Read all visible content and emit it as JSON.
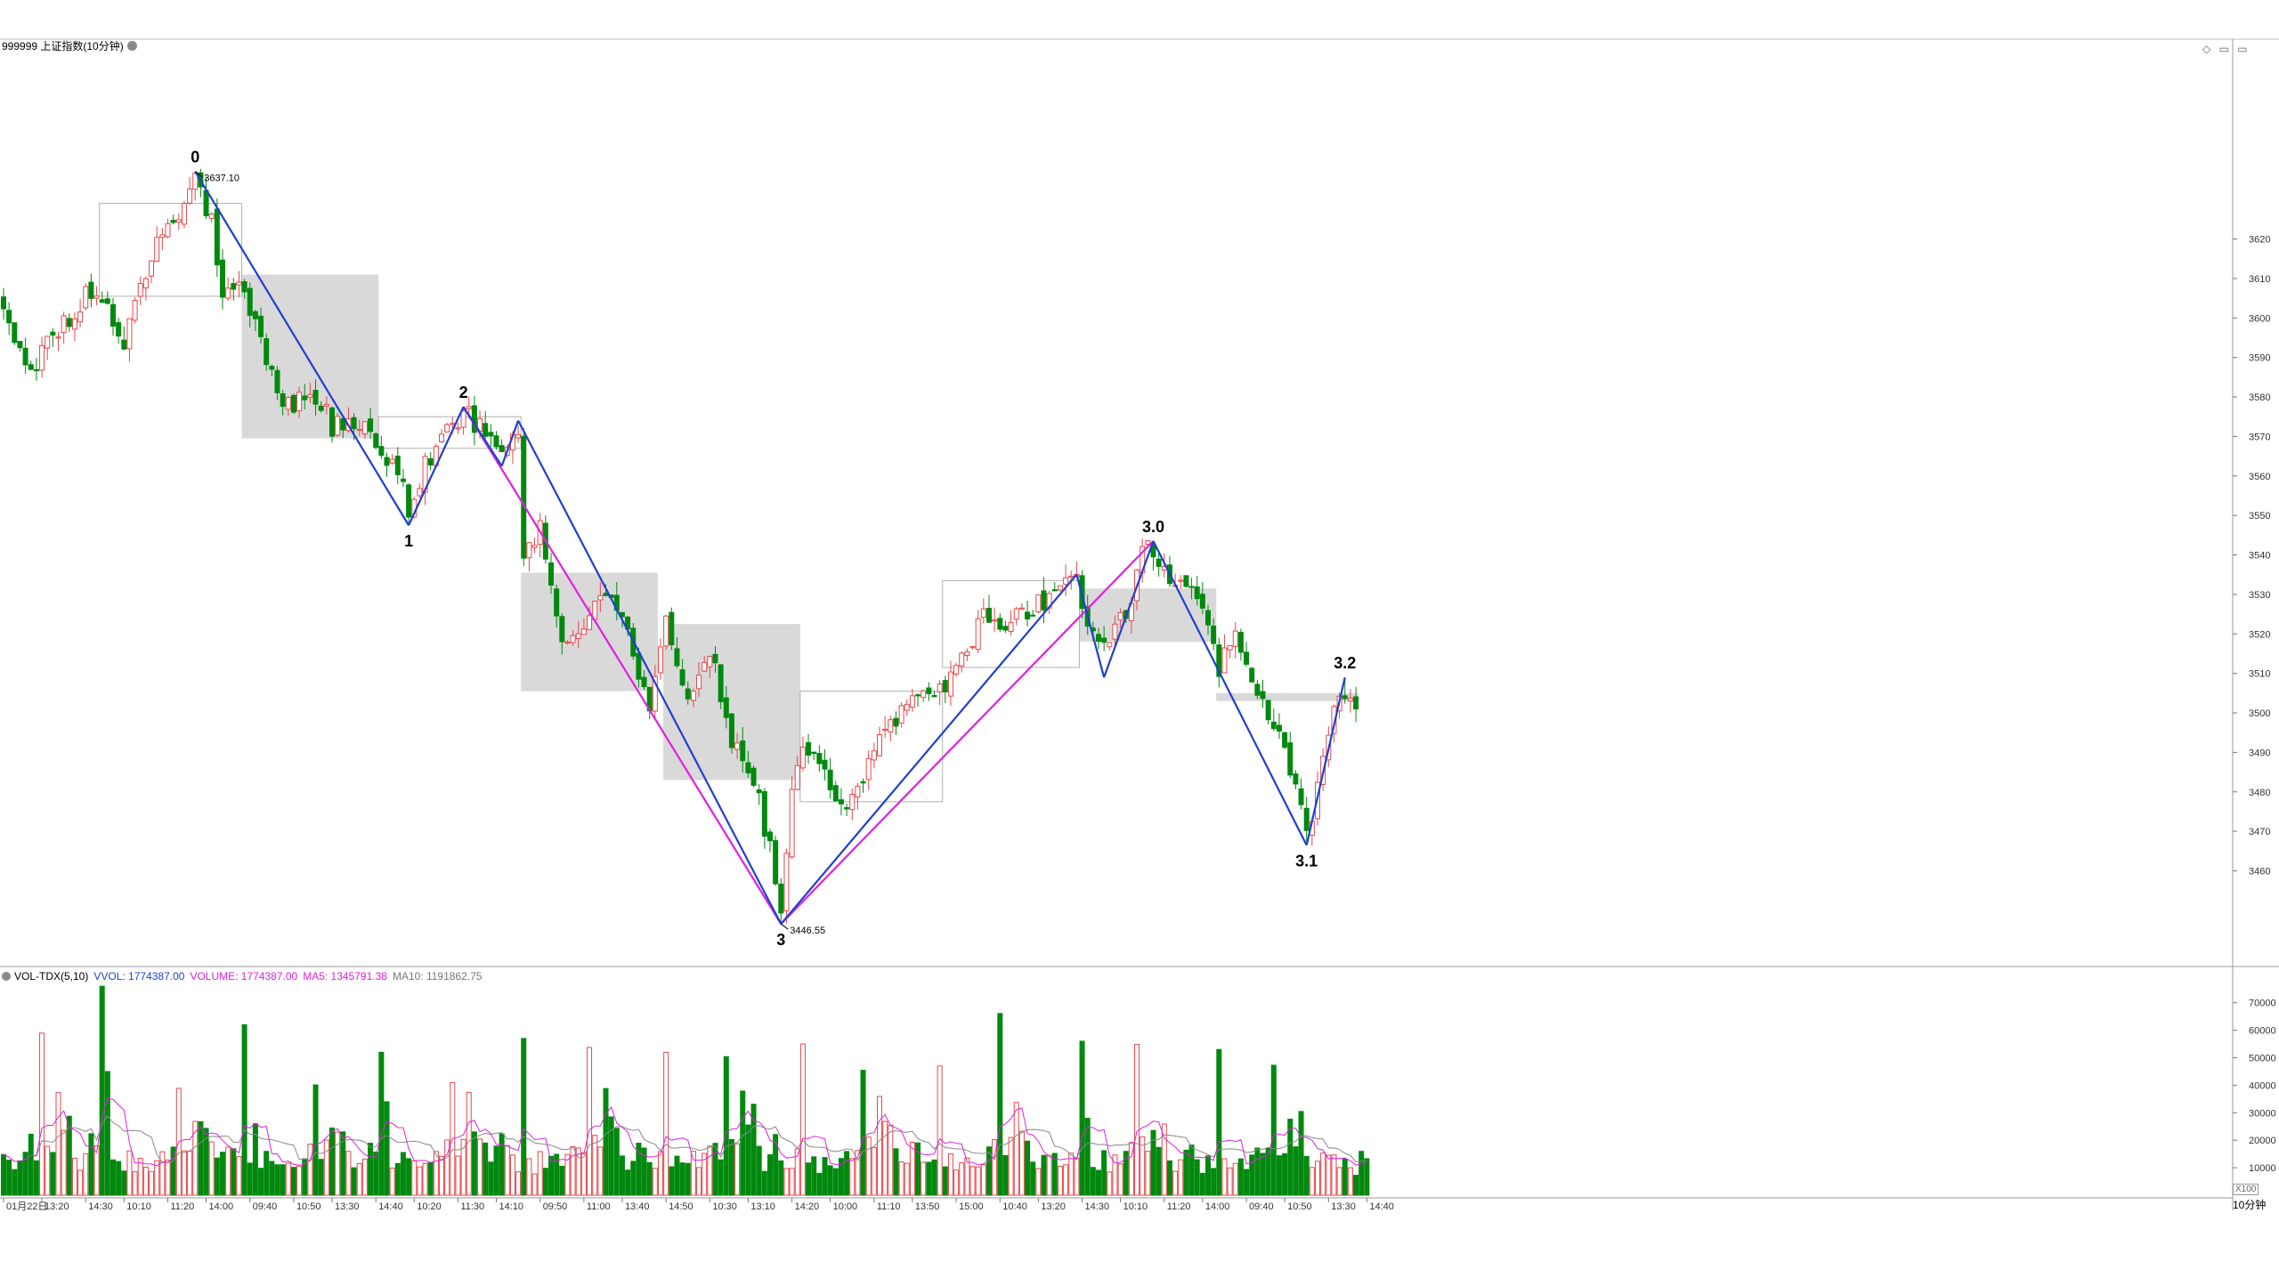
{
  "header": {
    "title": "999999 上证指数(10分钟)",
    "settings_icon": "gear-icon"
  },
  "window_controls": {
    "icons": [
      "diamond-icon",
      "restore-icon",
      "maximize-icon"
    ],
    "glyphs": "◇ ▭ ▭"
  },
  "volume_header": {
    "name": "VOL-TDX(5,10)",
    "vvol": "VVOL: 1774387.00",
    "volume": "VOLUME: 1774387.00",
    "ma5": "MA5: 1345791.38",
    "ma10": "MA10: 1191862.75"
  },
  "timeframe_label": "10分钟",
  "scale_badge": "X100",
  "colors": {
    "up": "#e8474b",
    "down": "#00890e",
    "wave_blue": "#1f3fd1",
    "wave_magenta": "#e020e0",
    "box_fill": "#d9d9d9",
    "ma5": "#e020e0",
    "ma10": "#888888"
  },
  "chart_data": [
    {
      "type": "candlestick",
      "title": "999999 上证指数(10分钟)",
      "y_ticks": [
        3460,
        3470,
        3480,
        3490,
        3500,
        3510,
        3520,
        3530,
        3540,
        3550,
        3560,
        3570,
        3580,
        3590,
        3600,
        3610,
        3620
      ],
      "ylim": [
        3436,
        3667
      ],
      "high_label": "3637.10",
      "low_label": "3446.55",
      "wave_points": [
        {
          "label": "0",
          "bar": 35,
          "value": 3637.1
        },
        {
          "label": "1",
          "bar": 74,
          "value": 3547.5
        },
        {
          "label": "2",
          "bar": 84,
          "value": 3577.5
        },
        {
          "label": "3",
          "bar": 142,
          "value": 3446.55
        },
        {
          "label": "3.0",
          "bar": 210,
          "value": 3543.5
        },
        {
          "label": "3.1",
          "bar": 238,
          "value": 3466.5
        },
        {
          "label": "3.2",
          "bar": 245,
          "value": 3509
        }
      ],
      "wave_segments_blue": [
        {
          "from_bar": 35,
          "from": 3637.1,
          "to_bar": 74,
          "to": 3547.5
        },
        {
          "from_bar": 74,
          "from": 3547.5,
          "to_bar": 84,
          "to": 3577.5
        },
        {
          "from_bar": 84,
          "from": 3577.5,
          "to_bar": 91,
          "to": 3562.5
        },
        {
          "from_bar": 91,
          "from": 3562.5,
          "to_bar": 94,
          "to": 3574
        },
        {
          "from_bar": 94,
          "from": 3574,
          "to_bar": 142,
          "to": 3446.55
        },
        {
          "from_bar": 142,
          "from": 3446.55,
          "to_bar": 196,
          "to": 3535
        },
        {
          "from_bar": 196,
          "from": 3535,
          "to_bar": 201,
          "to": 3509
        },
        {
          "from_bar": 201,
          "from": 3509,
          "to_bar": 210,
          "to": 3543.5
        },
        {
          "from_bar": 210,
          "from": 3543.5,
          "to_bar": 238,
          "to": 3466.5
        },
        {
          "from_bar": 238,
          "from": 3466.5,
          "to_bar": 245,
          "to": 3509
        }
      ],
      "wave_segments_magenta": [
        {
          "from_bar": 84,
          "from": 3577.5,
          "to_bar": 142,
          "to": 3446.55
        },
        {
          "from_bar": 142,
          "from": 3446.55,
          "to_bar": 210,
          "to": 3543.5
        }
      ],
      "boxes_filled": [
        {
          "from_bar": 44,
          "to_bar": 68,
          "top": 3611,
          "bottom": 3569.5
        },
        {
          "from_bar": 95,
          "to_bar": 119,
          "top": 3535.5,
          "bottom": 3505.5
        },
        {
          "from_bar": 121,
          "to_bar": 145,
          "top": 3522.5,
          "bottom": 3483
        },
        {
          "from_bar": 197,
          "to_bar": 221,
          "top": 3531.5,
          "bottom": 3518
        },
        {
          "from_bar": 222,
          "to_bar": 247,
          "top": 3505,
          "bottom": 3503
        }
      ],
      "boxes_outline": [
        {
          "from_bar": 18,
          "to_bar": 43,
          "top": 3629,
          "bottom": 3605.5
        },
        {
          "from_bar": 69,
          "to_bar": 94,
          "top": 3575,
          "bottom": 3567
        },
        {
          "from_bar": 146,
          "to_bar": 171,
          "top": 3505.5,
          "bottom": 3477.5
        },
        {
          "from_bar": 172,
          "to_bar": 196,
          "top": 3533.5,
          "bottom": 3511.5
        }
      ],
      "anchors": [
        [
          0,
          3601
        ],
        [
          5,
          3585
        ],
        [
          10,
          3598
        ],
        [
          15,
          3605
        ],
        [
          20,
          3600
        ],
        [
          22,
          3592
        ],
        [
          25,
          3608
        ],
        [
          28,
          3618
        ],
        [
          31,
          3625
        ],
        [
          35,
          3634
        ],
        [
          38,
          3624
        ],
        [
          40,
          3605
        ],
        [
          44,
          3608
        ],
        [
          48,
          3590
        ],
        [
          52,
          3577
        ],
        [
          56,
          3582
        ],
        [
          60,
          3573
        ],
        [
          64,
          3574
        ],
        [
          68,
          3570
        ],
        [
          72,
          3560
        ],
        [
          74,
          3552
        ],
        [
          77,
          3563
        ],
        [
          80,
          3568
        ],
        [
          84,
          3576
        ],
        [
          87,
          3573
        ],
        [
          91,
          3566
        ],
        [
          94,
          3572
        ],
        [
          95,
          3540
        ],
        [
          98,
          3547
        ],
        [
          102,
          3520
        ],
        [
          106,
          3522
        ],
        [
          110,
          3530
        ],
        [
          114,
          3520
        ],
        [
          118,
          3502
        ],
        [
          121,
          3522
        ],
        [
          125,
          3506
        ],
        [
          129,
          3516
        ],
        [
          133,
          3494
        ],
        [
          137,
          3484
        ],
        [
          140,
          3465
        ],
        [
          142,
          3452
        ],
        [
          144,
          3478
        ],
        [
          146,
          3493
        ],
        [
          150,
          3485
        ],
        [
          154,
          3476
        ],
        [
          158,
          3487
        ],
        [
          162,
          3498
        ],
        [
          166,
          3502
        ],
        [
          170,
          3505
        ],
        [
          172,
          3508
        ],
        [
          175,
          3514
        ],
        [
          179,
          3524
        ],
        [
          183,
          3522
        ],
        [
          187,
          3526
        ],
        [
          191,
          3530
        ],
        [
          196,
          3533
        ],
        [
          198,
          3524
        ],
        [
          201,
          3516
        ],
        [
          205,
          3525
        ],
        [
          208,
          3540
        ],
        [
          210,
          3542
        ],
        [
          213,
          3532
        ],
        [
          217,
          3533
        ],
        [
          219,
          3528
        ],
        [
          222,
          3512
        ],
        [
          225,
          3518
        ],
        [
          228,
          3509
        ],
        [
          232,
          3498
        ],
        [
          236,
          3480
        ],
        [
          238,
          3468
        ],
        [
          240,
          3480
        ],
        [
          243,
          3499
        ],
        [
          245,
          3505
        ],
        [
          247,
          3501
        ]
      ]
    },
    {
      "type": "bar",
      "title": "VOL-TDX(5,10)",
      "y_ticks": [
        10000,
        20000,
        30000,
        40000,
        50000,
        60000,
        70000
      ],
      "ylim": [
        0,
        78000
      ],
      "volume_pattern": [
        17000,
        52000,
        18000,
        16500,
        32000,
        23000,
        26000,
        16000,
        12000,
        14500,
        18000,
        15000,
        12500,
        9500,
        14000,
        11000,
        10000,
        13000,
        11000,
        12000,
        13000,
        9500,
        12500,
        14000,
        17500
      ],
      "volume_spikes": [
        {
          "bar": 18,
          "value": 76000
        },
        {
          "bar": 19,
          "value": 45000
        },
        {
          "bar": 44,
          "value": 62000
        },
        {
          "bar": 46,
          "value": 26000
        },
        {
          "bar": 69,
          "value": 52000
        },
        {
          "bar": 70,
          "value": 34000
        },
        {
          "bar": 95,
          "value": 57000
        },
        {
          "bar": 121,
          "value": 52000
        },
        {
          "bar": 146,
          "value": 55000
        },
        {
          "bar": 171,
          "value": 47000
        },
        {
          "bar": 197,
          "value": 56000
        },
        {
          "bar": 198,
          "value": 28000
        },
        {
          "bar": 222,
          "value": 53000
        }
      ]
    }
  ],
  "x_axis": {
    "ticks": [
      {
        "bar": 0,
        "label": "01月22日"
      },
      {
        "bar": 7,
        "label": "13:20"
      },
      {
        "bar": 15,
        "label": "14:30"
      },
      {
        "bar": 22,
        "label": "10:10"
      },
      {
        "bar": 30,
        "label": "11:20"
      },
      {
        "bar": 37,
        "label": "14:00"
      },
      {
        "bar": 45,
        "label": "09:40"
      },
      {
        "bar": 53,
        "label": "10:50"
      },
      {
        "bar": 60,
        "label": "13:30"
      },
      {
        "bar": 68,
        "label": "14:40"
      },
      {
        "bar": 75,
        "label": "10:20"
      },
      {
        "bar": 83,
        "label": "11:30"
      },
      {
        "bar": 90,
        "label": "14:10"
      },
      {
        "bar": 98,
        "label": "09:50"
      },
      {
        "bar": 106,
        "label": "11:00"
      },
      {
        "bar": 113,
        "label": "13:40"
      },
      {
        "bar": 121,
        "label": "14:50"
      },
      {
        "bar": 129,
        "label": "10:30"
      },
      {
        "bar": 136,
        "label": "13:10"
      },
      {
        "bar": 144,
        "label": "14:20"
      },
      {
        "bar": 151,
        "label": "10:00"
      },
      {
        "bar": 159,
        "label": "11:10"
      },
      {
        "bar": 166,
        "label": "13:50"
      },
      {
        "bar": 174,
        "label": "15:00"
      },
      {
        "bar": 182,
        "label": "10:40"
      },
      {
        "bar": 189,
        "label": "13:20"
      },
      {
        "bar": 197,
        "label": "14:30"
      },
      {
        "bar": 204,
        "label": "10:10"
      },
      {
        "bar": 212,
        "label": "11:20"
      },
      {
        "bar": 219,
        "label": "14:00"
      },
      {
        "bar": 227,
        "label": "09:40"
      },
      {
        "bar": 234,
        "label": "10:50"
      },
      {
        "bar": 242,
        "label": "13:30"
      },
      {
        "bar": 249,
        "label": "14:40"
      }
    ]
  }
}
